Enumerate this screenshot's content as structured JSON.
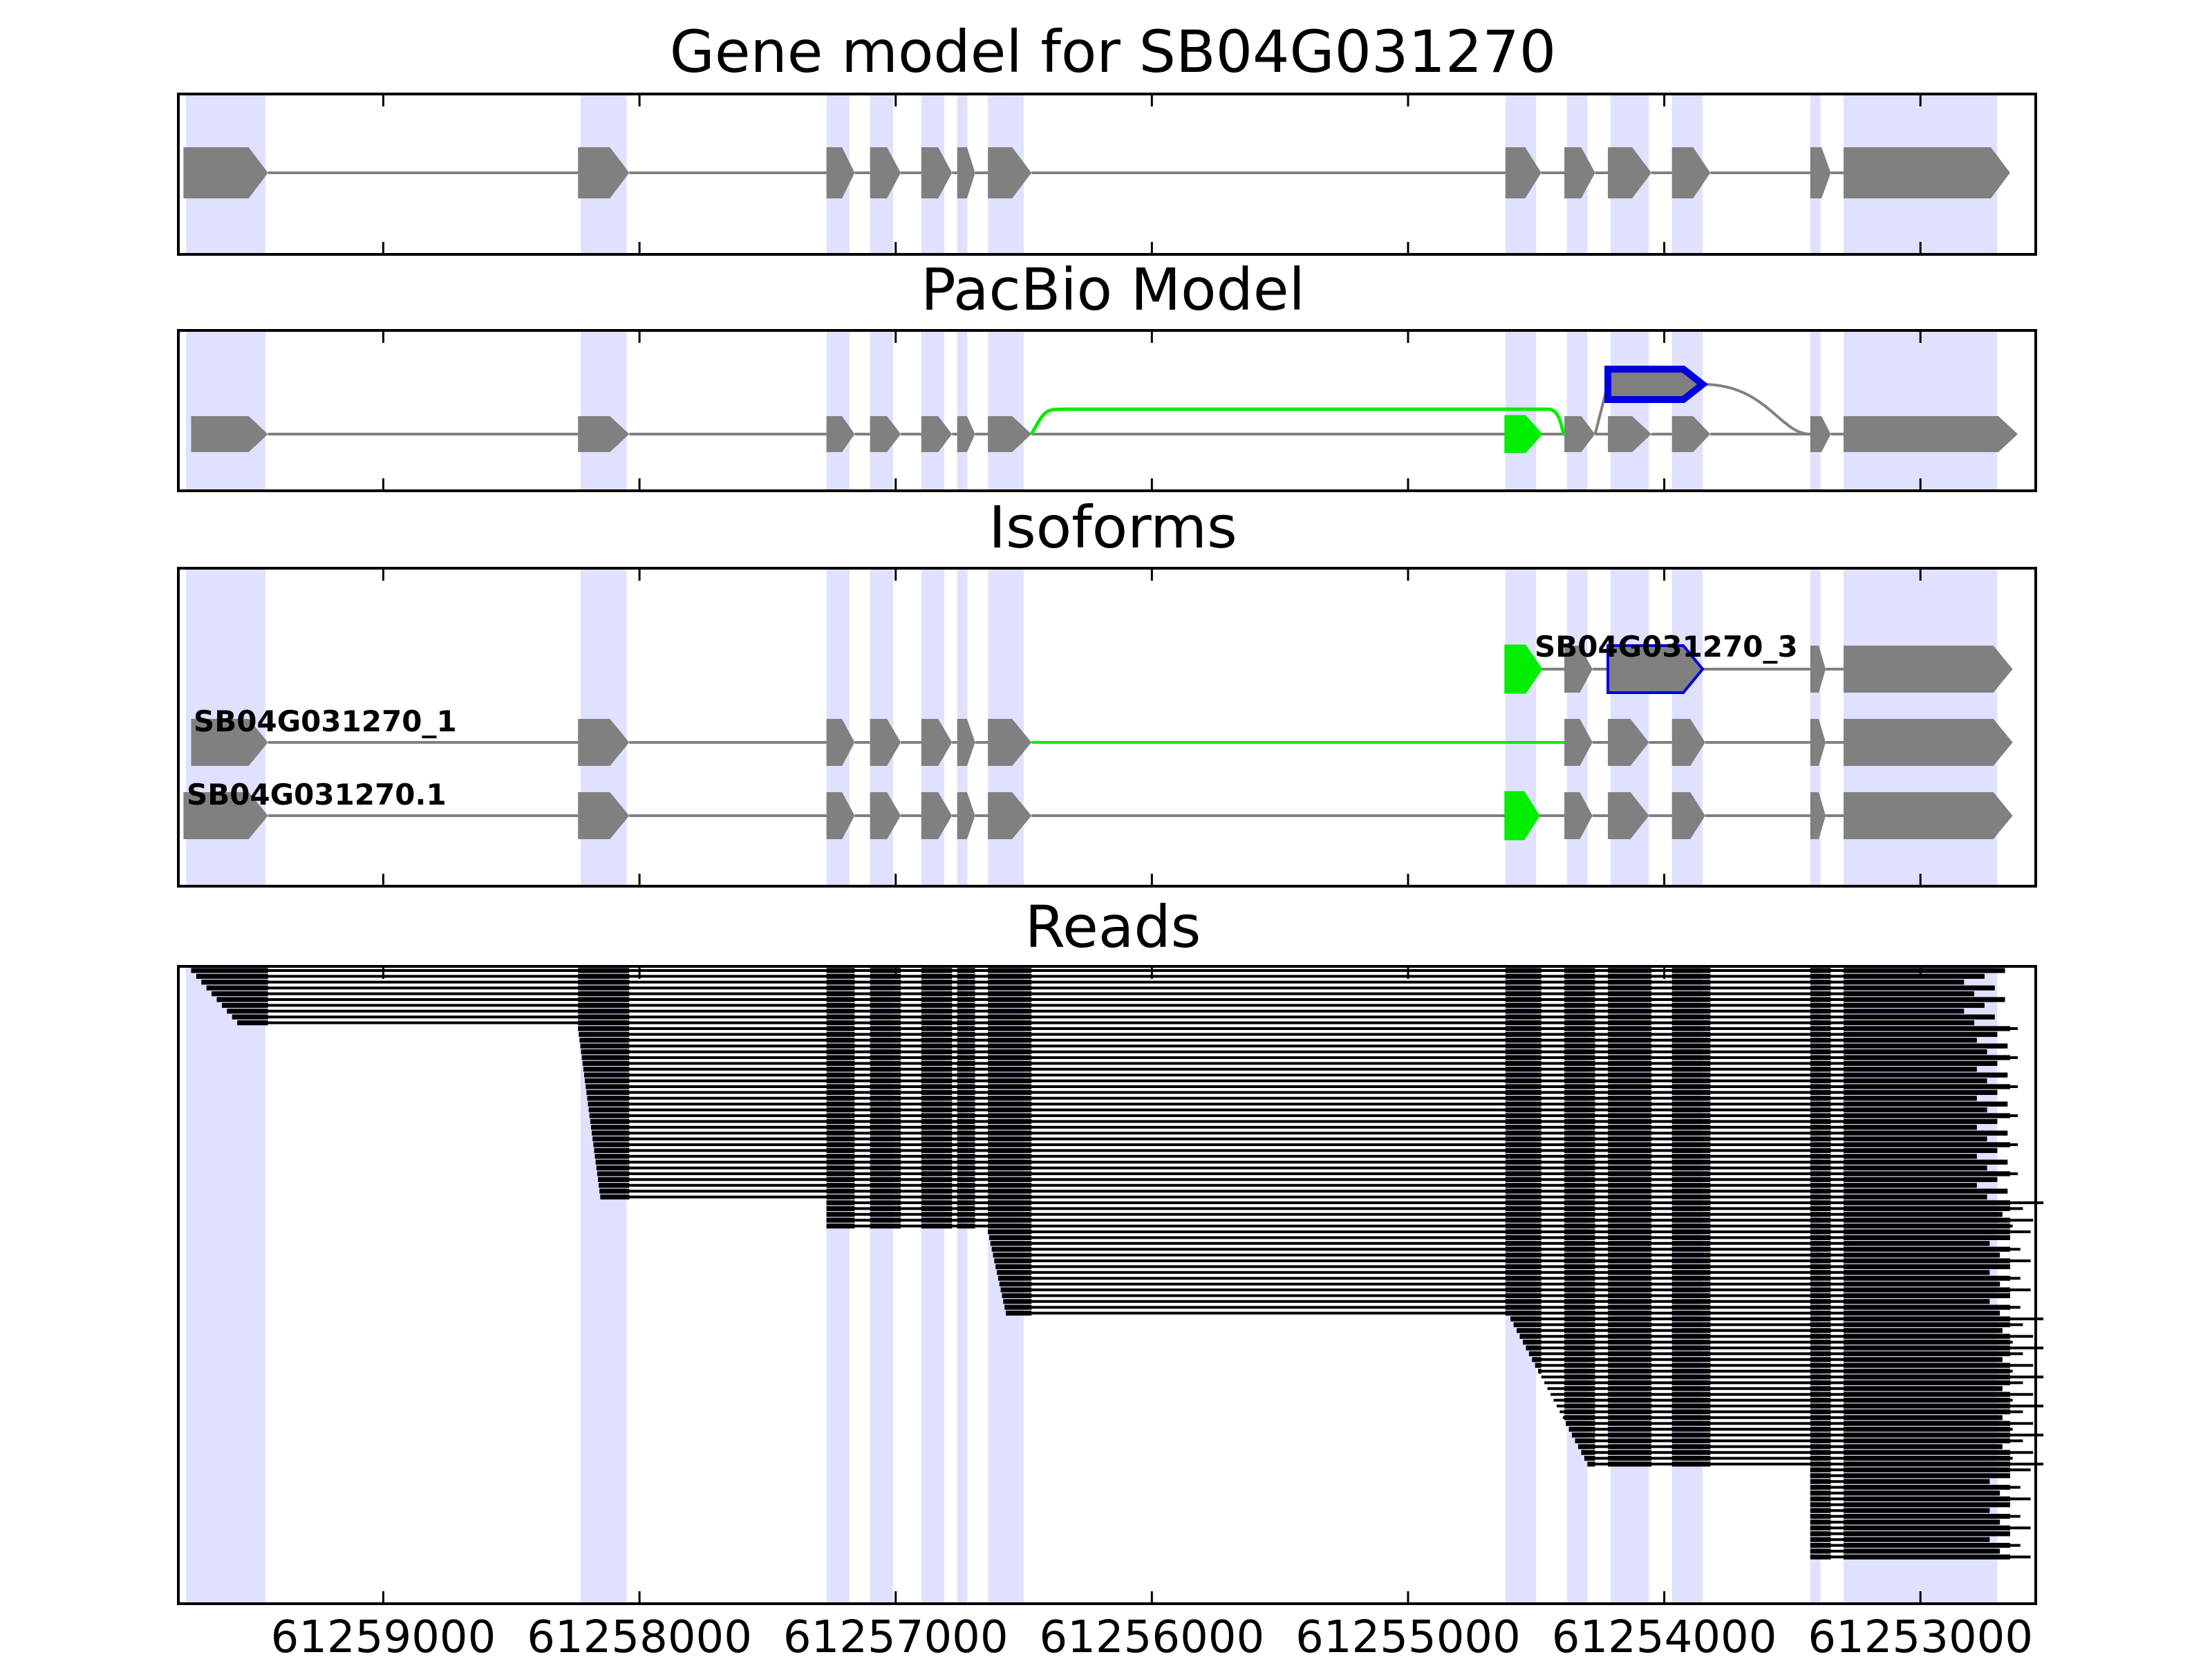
{
  "chart_data": {
    "type": "gene_structure",
    "x_direction": "reversed",
    "xlim": [
      61259800,
      61252550
    ],
    "x_ticks": [
      61259000,
      61258000,
      61257000,
      61256000,
      61255000,
      61254000,
      61253000
    ],
    "x_tick_labels": [
      "61259000",
      "61258000",
      "61257000",
      "61256000",
      "61255000",
      "61254000",
      "61253000"
    ],
    "colors": {
      "exon": "#808080",
      "intron": "#808080",
      "highlight": "#e0e0ff",
      "alt_skip": "#00ee00",
      "alt_retain": "#0000dd",
      "read": "#000000"
    },
    "highlight_regions": [
      [
        61259770,
        61259460
      ],
      [
        61258230,
        61258050
      ],
      [
        61257270,
        61257180
      ],
      [
        61257100,
        61257010
      ],
      [
        61256900,
        61256810
      ],
      [
        61256760,
        61256720
      ],
      [
        61256640,
        61256500
      ],
      [
        61254620,
        61254500
      ],
      [
        61254380,
        61254300
      ],
      [
        61254210,
        61254060
      ],
      [
        61253970,
        61253850
      ],
      [
        61253430,
        61253390
      ],
      [
        61253300,
        61252700
      ]
    ],
    "panels": [
      {
        "title": "Gene model for SB04G031270",
        "tracks": [
          {
            "label": "",
            "color": "exon",
            "exons": [
              [
                61259780,
                61259450
              ],
              [
                61258240,
                61258040
              ],
              [
                61257270,
                61257160
              ],
              [
                61257100,
                61256980
              ],
              [
                61256900,
                61256780
              ],
              [
                61256760,
                61256690
              ],
              [
                61256640,
                61256470
              ],
              [
                61254620,
                61254480
              ],
              [
                61254390,
                61254270
              ],
              [
                61254220,
                61254050
              ],
              [
                61253970,
                61253820
              ],
              [
                61253430,
                61253350
              ],
              [
                61253300,
                61252650
              ]
            ]
          }
        ]
      },
      {
        "title": "PacBio Model",
        "tracks": [
          {
            "label": "",
            "color": "exon",
            "exons": [
              [
                61259750,
                61259450
              ],
              [
                61258240,
                61258040
              ],
              [
                61257270,
                61257160
              ],
              [
                61257100,
                61256980
              ],
              [
                61256900,
                61256780
              ],
              [
                61256760,
                61256690
              ],
              [
                61256640,
                61256470
              ],
              [
                61254390,
                61254270
              ],
              [
                61254220,
                61254050
              ],
              [
                61253970,
                61253820
              ],
              [
                61253430,
                61253350
              ],
              [
                61253300,
                61252620
              ]
            ]
          }
        ],
        "alt_exons": [
          {
            "kind": "skipped_exon",
            "color": "alt_skip",
            "span": [
              61254620,
              61254480
            ]
          },
          {
            "kind": "retained_region",
            "color": "alt_retain",
            "span": [
              61254220,
              61253850
            ]
          }
        ]
      },
      {
        "title": "Isoforms",
        "tracks": [
          {
            "label": "SB04G031270_3",
            "color": "exon",
            "exons": [
              [
                61254620,
                61254480,
                "alt_skip"
              ],
              [
                61254390,
                61254280
              ],
              [
                61254220,
                61253850,
                "alt_retain"
              ],
              [
                61253430,
                61253370
              ],
              [
                61253300,
                61252640
              ]
            ]
          },
          {
            "label": "SB04G031270_1",
            "color": "exon",
            "exons": [
              [
                61259750,
                61259450
              ],
              [
                61258240,
                61258040
              ],
              [
                61257270,
                61257160
              ],
              [
                61257100,
                61256980
              ],
              [
                61256900,
                61256780
              ],
              [
                61256760,
                61256690
              ],
              [
                61256640,
                61256470
              ],
              [
                61254390,
                61254280
              ],
              [
                61254220,
                61254060
              ],
              [
                61253970,
                61253840
              ],
              [
                61253430,
                61253370
              ],
              [
                61253300,
                61252640
              ]
            ],
            "skip_intron": [
              61256470,
              61254390
            ]
          },
          {
            "label": "SB04G031270.1",
            "color": "exon",
            "exons": [
              [
                61259780,
                61259450
              ],
              [
                61258240,
                61258040
              ],
              [
                61257270,
                61257160
              ],
              [
                61257100,
                61256980
              ],
              [
                61256900,
                61256780
              ],
              [
                61256760,
                61256690
              ],
              [
                61256640,
                61256470
              ],
              [
                61254620,
                61254490,
                "alt_skip"
              ],
              [
                61254390,
                61254280
              ],
              [
                61254220,
                61254060
              ],
              [
                61253970,
                61253840
              ],
              [
                61253430,
                61253370
              ],
              [
                61253300,
                61252640
              ]
            ]
          }
        ]
      },
      {
        "title": "Reads",
        "read_groups": [
          {
            "count": 10,
            "start": 61259750,
            "end": 61252750,
            "start_step": -20
          },
          {
            "count": 30,
            "start": 61258240,
            "end": 61252700,
            "start_step": -3
          },
          {
            "count": 5,
            "start": 61257270,
            "end": 61252600,
            "start_step": 0
          },
          {
            "count": 15,
            "start": 61256640,
            "end": 61252650,
            "start_step": -5
          },
          {
            "count": 26,
            "start": 61254600,
            "end": 61252600,
            "start_step": -12
          },
          {
            "count": 16,
            "start": 61253430,
            "end": 61252650,
            "start_step": 0
          }
        ]
      }
    ]
  }
}
